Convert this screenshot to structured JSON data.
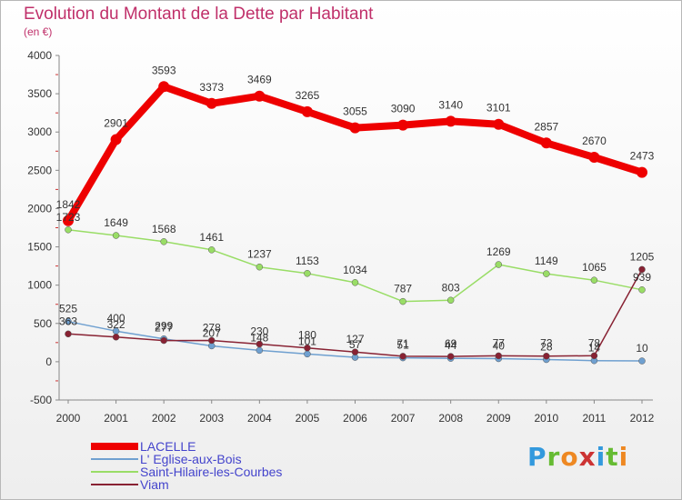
{
  "header": {
    "title": "Evolution du Montant de la Dette par Habitant",
    "subtitle": "(en €)"
  },
  "logo": {
    "text": "Proxiti"
  },
  "chart_data": {
    "type": "line",
    "title": "Evolution du Montant de la Dette par Habitant",
    "subtitle": "(en €)",
    "xlabel": "",
    "ylabel": "",
    "x": [
      "2000",
      "2001",
      "2002",
      "2003",
      "2004",
      "2005",
      "2006",
      "2007",
      "2008",
      "2009",
      "2010",
      "2011",
      "2012"
    ],
    "ylim": [
      -500,
      4000
    ],
    "yticks": [
      -500,
      0,
      500,
      1000,
      1500,
      2000,
      2500,
      3000,
      3500,
      4000
    ],
    "grid": false,
    "legend_position": "bottom-left",
    "series": [
      {
        "name": "LACELLE",
        "color": "#ee0000",
        "values": [
          1842,
          2901,
          3593,
          3373,
          3469,
          3265,
          3055,
          3090,
          3140,
          3101,
          2857,
          2670,
          2473
        ]
      },
      {
        "name": "L' Eglise-aux-Bois",
        "color": "#6fa0d0",
        "values": [
          525,
          400,
          299,
          207,
          148,
          101,
          57,
          51,
          44,
          40,
          28,
          14,
          10
        ]
      },
      {
        "name": "Saint-Hilaire-les-Courbes",
        "color": "#99dd66",
        "values": [
          1723,
          1649,
          1568,
          1461,
          1237,
          1153,
          1034,
          787,
          803,
          1269,
          1149,
          1065,
          939
        ]
      },
      {
        "name": "Viam",
        "color": "#882233",
        "values": [
          363,
          322,
          277,
          278,
          230,
          180,
          127,
          71,
          69,
          77,
          73,
          78,
          1205
        ]
      }
    ]
  }
}
